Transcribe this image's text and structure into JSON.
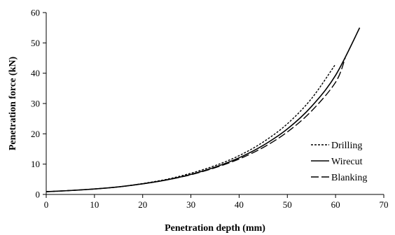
{
  "chart_data": {
    "type": "line",
    "title": "",
    "xlabel": "Penetration depth (mm)",
    "ylabel": "Penetration force (kN)",
    "xlim": [
      0,
      70
    ],
    "ylim": [
      0,
      60
    ],
    "xticks": [
      0,
      10,
      20,
      30,
      40,
      50,
      60,
      70
    ],
    "yticks": [
      0,
      10,
      20,
      30,
      40,
      50,
      60
    ],
    "grid": false,
    "legend_position": "lower-right",
    "series": [
      {
        "name": "Drilling",
        "line_style": "dotted",
        "x": [
          0,
          5,
          10,
          15,
          20,
          25,
          30,
          35,
          40,
          45,
          50,
          55,
          60
        ],
        "y": [
          0.9,
          1.3,
          1.8,
          2.5,
          3.6,
          5.0,
          7.0,
          9.5,
          12.8,
          17.3,
          23.3,
          31.6,
          43.0
        ]
      },
      {
        "name": "Wirecut",
        "line_style": "solid",
        "x": [
          0,
          5,
          10,
          15,
          20,
          25,
          30,
          35,
          40,
          45,
          50,
          55,
          60,
          65
        ],
        "y": [
          0.9,
          1.3,
          1.8,
          2.5,
          3.5,
          4.8,
          6.6,
          9.0,
          12.1,
          16.2,
          21.6,
          29.0,
          39.3,
          55.0
        ]
      },
      {
        "name": "Blanking",
        "line_style": "dashed",
        "x": [
          0,
          5,
          10,
          15,
          20,
          25,
          30,
          35,
          40,
          45,
          50,
          55,
          60,
          62
        ],
        "y": [
          0.9,
          1.3,
          1.8,
          2.5,
          3.5,
          4.8,
          6.5,
          8.8,
          11.7,
          15.5,
          20.6,
          27.5,
          37.0,
          45.0
        ]
      }
    ]
  }
}
